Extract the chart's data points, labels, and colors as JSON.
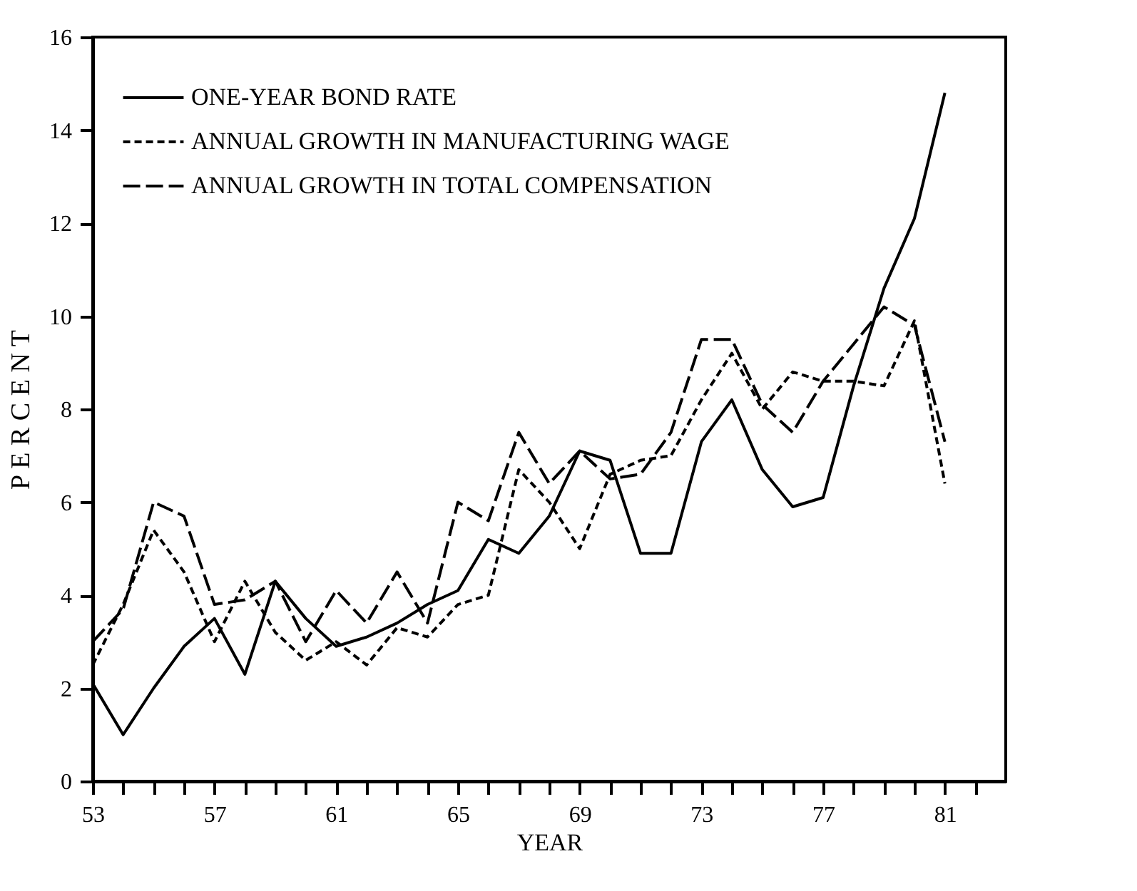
{
  "chart_data": {
    "type": "line",
    "xlabel": "YEAR",
    "ylabel": "P E R C E N T",
    "x": [
      53,
      54,
      55,
      56,
      57,
      58,
      59,
      60,
      61,
      62,
      63,
      64,
      65,
      66,
      67,
      68,
      69,
      70,
      71,
      72,
      73,
      74,
      75,
      76,
      77,
      78,
      79,
      80,
      81
    ],
    "series": [
      {
        "name": "ONE-YEAR BOND RATE",
        "color": "#000000",
        "line_style": "solid",
        "values": [
          2.1,
          1.0,
          2.0,
          2.9,
          3.5,
          2.3,
          4.3,
          3.5,
          2.9,
          3.1,
          3.4,
          3.8,
          4.1,
          5.2,
          4.9,
          5.7,
          7.1,
          6.9,
          4.9,
          4.9,
          7.3,
          8.2,
          6.7,
          5.9,
          6.1,
          8.5,
          10.6,
          12.1,
          14.8
        ]
      },
      {
        "name": "ANNUAL GROWTH IN MANUFACTURING WAGE",
        "color": "#000000",
        "line_style": "dotted",
        "values": [
          2.5,
          3.8,
          5.4,
          4.5,
          3.0,
          4.3,
          3.2,
          2.6,
          3.0,
          2.5,
          3.3,
          3.1,
          3.8,
          4.0,
          6.7,
          6.0,
          5.0,
          6.6,
          6.9,
          7.0,
          8.2,
          9.2,
          8.0,
          8.8,
          8.6,
          8.6,
          8.5,
          9.9,
          6.4
        ]
      },
      {
        "name": "ANNUAL GROWTH IN TOTAL COMPENSATION",
        "color": "#000000",
        "line_style": "dashed",
        "values": [
          3.0,
          3.7,
          6.0,
          5.7,
          3.8,
          3.9,
          4.3,
          3.0,
          4.1,
          3.4,
          4.5,
          3.4,
          6.0,
          5.6,
          7.5,
          6.4,
          7.1,
          6.5,
          6.6,
          7.5,
          9.5,
          9.5,
          8.1,
          7.5,
          8.6,
          9.4,
          10.2,
          9.8,
          7.3
        ]
      }
    ],
    "xlim": [
      53,
      83
    ],
    "xticks": [
      53,
      {
        "value": 54,
        "label": null
      },
      {
        "value": 55,
        "label": null
      },
      {
        "value": 56,
        "label": null
      },
      57,
      {
        "value": 58,
        "label": null
      },
      {
        "value": 59,
        "label": null
      },
      {
        "value": 60,
        "label": null
      },
      61,
      {
        "value": 62,
        "label": null
      },
      {
        "value": 63,
        "label": null
      },
      {
        "value": 64,
        "label": null
      },
      65,
      {
        "value": 66,
        "label": null
      },
      {
        "value": 67,
        "label": null
      },
      {
        "value": 68,
        "label": null
      },
      69,
      {
        "value": 70,
        "label": null
      },
      {
        "value": 71,
        "label": null
      },
      {
        "value": 72,
        "label": null
      },
      73,
      {
        "value": 74,
        "label": null
      },
      {
        "value": 75,
        "label": null
      },
      {
        "value": 76,
        "label": null
      },
      77,
      {
        "value": 78,
        "label": null
      },
      {
        "value": 79,
        "label": null
      },
      {
        "value": 80,
        "label": null
      },
      81,
      {
        "value": 82,
        "label": null
      }
    ],
    "ylim": [
      0,
      16
    ],
    "yticks": [
      0,
      2,
      4,
      6,
      8,
      10,
      12,
      14,
      16
    ],
    "grid": false,
    "legend": "top left",
    "marker": "none"
  }
}
